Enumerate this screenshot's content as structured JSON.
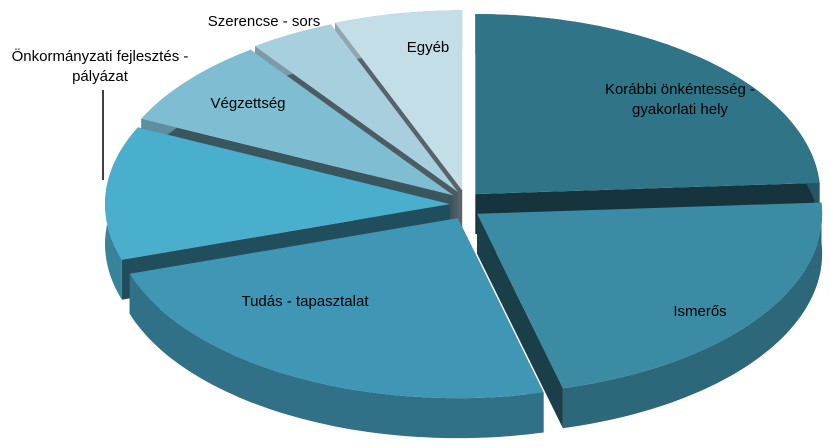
{
  "chart_data": {
    "type": "pie3d",
    "categories": [
      "Korábbi önkéntesség - gyakorlati hely",
      "Ismerős",
      "Tudás - tapasztalat",
      "Önkormányzati fejlesztés - pályázat",
      "Végzettség",
      "Szerencse - sors",
      "Egyéb"
    ],
    "values": [
      24,
      22,
      24,
      12,
      8,
      4,
      6
    ],
    "colors": [
      "#2f7487",
      "#3a8ba3",
      "#4096b5",
      "#4aaecd",
      "#7fbed2",
      "#a7cfdd",
      "#c3dee7"
    ]
  }
}
